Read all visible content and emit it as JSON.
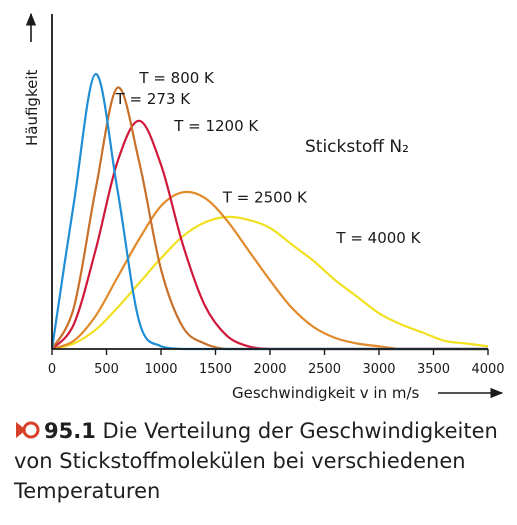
{
  "chart_data": {
    "type": "line",
    "ylabel": "Häufigkeit",
    "xlabel": "Geschwindigkeit v in m/s",
    "annotation": "Stickstoff N₂",
    "xlim": [
      0,
      4000
    ],
    "xticks": [
      0,
      500,
      1000,
      1500,
      2000,
      2500,
      3000,
      3500,
      4000
    ],
    "grid": false,
    "x": [
      0,
      200,
      400,
      600,
      800,
      1000,
      1200,
      1400,
      1600,
      1800,
      2000,
      2200,
      2400,
      2600,
      2800,
      3000,
      3200,
      3400,
      3600,
      3800,
      4000
    ],
    "series": [
      {
        "name": "T = 273 K",
        "color": "#1f8ed6",
        "values": [
          0,
          0.53,
          1.0,
          0.58,
          0.1,
          0.01,
          0,
          0,
          0,
          0,
          0,
          0,
          0,
          0,
          0,
          0,
          0,
          0,
          0,
          0,
          0
        ]
      },
      {
        "name": "T = 800 K",
        "color": "#c8702a",
        "values": [
          0,
          0.15,
          0.58,
          0.95,
          0.68,
          0.29,
          0.08,
          0.02,
          0,
          0,
          0,
          0,
          0,
          0,
          0,
          0,
          0,
          0,
          0,
          0,
          0
        ]
      },
      {
        "name": "T = 1200 K",
        "color": "#d0183a",
        "values": [
          0,
          0.09,
          0.36,
          0.68,
          0.83,
          0.67,
          0.38,
          0.16,
          0.05,
          0.01,
          0,
          0,
          0,
          0,
          0,
          0,
          0,
          0,
          0,
          0,
          0
        ]
      },
      {
        "name": "T = 2500 K",
        "color": "#e08a2a",
        "values": [
          0,
          0.03,
          0.12,
          0.26,
          0.4,
          0.52,
          0.57,
          0.55,
          0.47,
          0.36,
          0.25,
          0.15,
          0.08,
          0.04,
          0.02,
          0.01,
          0,
          0,
          0,
          0,
          0
        ]
      },
      {
        "name": "T = 4000 K",
        "color": "#f0e020",
        "values": [
          0,
          0.02,
          0.07,
          0.15,
          0.24,
          0.33,
          0.41,
          0.46,
          0.48,
          0.47,
          0.44,
          0.38,
          0.32,
          0.25,
          0.19,
          0.13,
          0.09,
          0.06,
          0.03,
          0.02,
          0.01
        ]
      }
    ]
  },
  "caption": {
    "number": "95.1",
    "text": "Die Verteilung der Geschwindigkeiten von Stickstoffmolekülen bei verschiedenen Temperaturen"
  }
}
